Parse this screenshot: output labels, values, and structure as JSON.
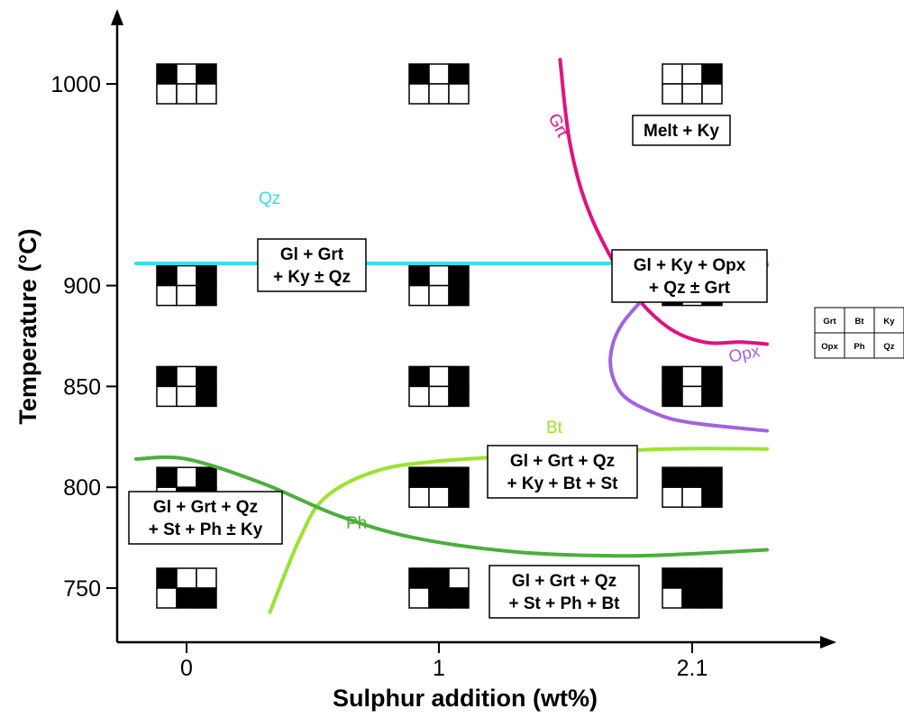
{
  "chart_data": {
    "type": "line",
    "title": "",
    "xlabel": "Sulphur addition (wt%)",
    "ylabel": "Temperature (°C)",
    "x_ticks": [
      "0",
      "1",
      "2.1"
    ],
    "y_ticks": [
      750,
      800,
      850,
      900,
      1000
    ],
    "grid": false,
    "series": [
      {
        "name": "Qz",
        "color": "#33dfee",
        "x": [
          -0.2,
          2.3
        ],
        "y": [
          911,
          911
        ]
      },
      {
        "name": "Grt",
        "color": "#e0127f",
        "x": [
          1.48,
          1.52,
          1.6,
          1.75,
          1.9,
          2.05,
          2.2,
          2.3
        ],
        "y": [
          1012,
          970,
          935,
          900,
          880,
          872,
          872,
          871
        ]
      },
      {
        "name": "Opx",
        "color": "#a064e0",
        "x": [
          2.3,
          1.95,
          1.75,
          1.68,
          1.72,
          1.85,
          2.0,
          2.3
        ],
        "y": [
          910,
          905,
          885,
          865,
          847,
          837,
          832,
          828
        ]
      },
      {
        "name": "Bt",
        "color": "#9be330",
        "x": [
          0.33,
          0.45,
          0.55,
          0.75,
          1.0,
          1.4,
          1.9,
          2.3
        ],
        "y": [
          738,
          775,
          795,
          808,
          813,
          816,
          819,
          819
        ]
      },
      {
        "name": "Ph",
        "color": "#4caf3c",
        "x": [
          -0.2,
          0.0,
          0.3,
          0.6,
          0.9,
          1.3,
          1.7,
          2.0,
          2.3
        ],
        "y": [
          814,
          814,
          802,
          786,
          775,
          768,
          766,
          767,
          769
        ]
      }
    ],
    "annotations": [
      {
        "text": "Melt + Ky",
        "x": 1.94,
        "y": 969
      },
      {
        "text": "Gl + Grt",
        "x": 0.5,
        "y": 885
      },
      {
        "text": "+ Ky ± Qz",
        "x": 0.5,
        "y": 880
      },
      {
        "text": "Gl + Ky + Opx",
        "x": 1.97,
        "y": 876
      },
      {
        "text": "+ Qz  ± Grt",
        "x": 1.97,
        "y": 871
      },
      {
        "text": "Gl + Grt + Qz",
        "x": 1.3,
        "y": 800
      },
      {
        "text": "+ Ky + Bt + St",
        "x": 1.3,
        "y": 795
      },
      {
        "text": "Gl  + Grt + Qz",
        "x": 0.12,
        "y": 786
      },
      {
        "text": "+ St + Ph  ± Ky",
        "x": 0.12,
        "y": 781
      },
      {
        "text": "Gl  + Grt + Qz",
        "x": 1.3,
        "y": 752
      },
      {
        "text": "+ St + Ph + Bt",
        "x": 1.3,
        "y": 747
      }
    ],
    "phase_grids": [
      {
        "x": "0",
        "T": 1000,
        "cells": [
          1,
          0,
          1,
          0,
          0,
          0
        ]
      },
      {
        "x": "1",
        "T": 1000,
        "cells": [
          1,
          0,
          1,
          0,
          0,
          0
        ]
      },
      {
        "x": "2.1",
        "T": 1000,
        "cells": [
          0,
          0,
          1,
          0,
          0,
          0
        ]
      },
      {
        "x": "0",
        "T": 900,
        "cells": [
          1,
          0,
          1,
          0,
          0,
          1
        ]
      },
      {
        "x": "1",
        "T": 900,
        "cells": [
          1,
          0,
          1,
          0,
          0,
          1
        ]
      },
      {
        "x": "2.1",
        "T": 900,
        "cells": [
          0,
          0,
          1,
          1,
          0,
          1
        ]
      },
      {
        "x": "0",
        "T": 850,
        "cells": [
          1,
          0,
          1,
          0,
          0,
          1
        ]
      },
      {
        "x": "1",
        "T": 850,
        "cells": [
          1,
          0,
          1,
          0,
          0,
          1
        ]
      },
      {
        "x": "2.1",
        "T": 850,
        "cells": [
          1,
          0,
          1,
          1,
          0,
          1
        ]
      },
      {
        "x": "0",
        "T": 800,
        "cells": [
          1,
          0,
          1,
          0,
          1,
          1
        ]
      },
      {
        "x": "1",
        "T": 800,
        "cells": [
          1,
          1,
          1,
          0,
          0,
          1
        ]
      },
      {
        "x": "2.1",
        "T": 800,
        "cells": [
          1,
          1,
          1,
          0,
          0,
          1
        ]
      },
      {
        "x": "0",
        "T": 750,
        "cells": [
          1,
          0,
          0,
          0,
          1,
          1
        ]
      },
      {
        "x": "1",
        "T": 750,
        "cells": [
          1,
          1,
          0,
          0,
          1,
          1
        ]
      },
      {
        "x": "2.1",
        "T": 750,
        "cells": [
          1,
          1,
          1,
          0,
          1,
          1
        ]
      }
    ],
    "legend": {
      "position": "right",
      "cells": [
        "Grt",
        "Bt",
        "Ky",
        "Opx",
        "Ph",
        "Qz"
      ]
    }
  }
}
